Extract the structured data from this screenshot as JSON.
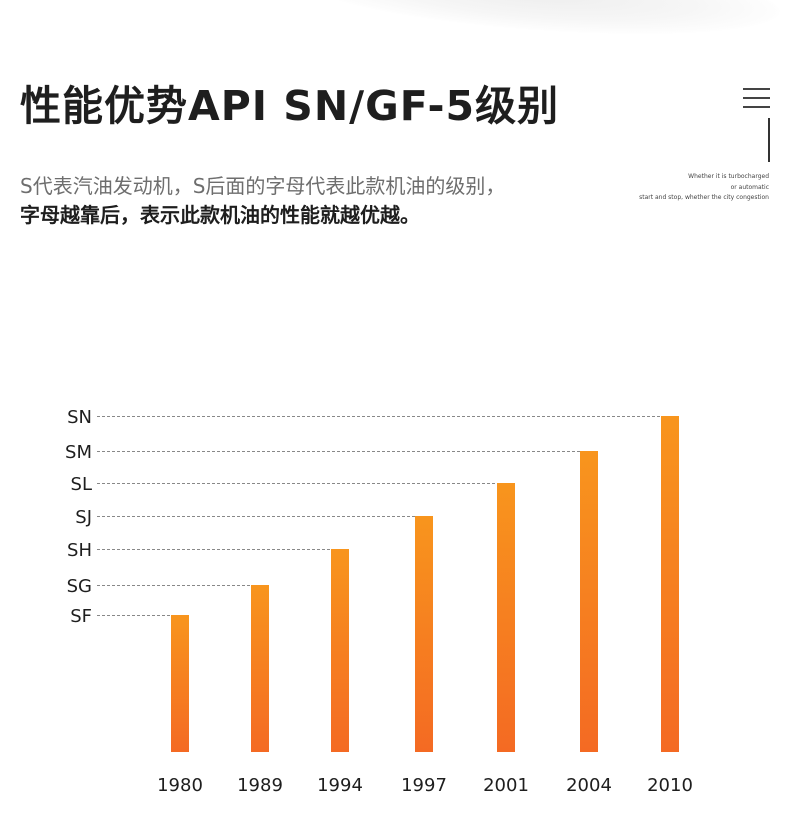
{
  "header": {
    "title": "性能优势API SN/GF-5级别"
  },
  "side_note": {
    "line1": "Whether it is turbocharged",
    "line2": "or automatic",
    "line3": "start and stop, whether the city congestion"
  },
  "subtitle": {
    "line1": "S代表汽油发动机，S后面的字母代表此款机油的级别，",
    "line2": "字母越靠后，表示此款机油的性能就越优越。"
  },
  "colors": {
    "bar_top": "#f8951d",
    "bar_bottom": "#f46a23",
    "gridline": "#888888",
    "text": "#1e1e1e"
  },
  "chart_data": {
    "type": "bar",
    "categories": [
      "1980",
      "1989",
      "1994",
      "1997",
      "2001",
      "2004",
      "2010"
    ],
    "y_levels": [
      "SF",
      "SG",
      "SH",
      "SJ",
      "SL",
      "SM",
      "SN"
    ],
    "values": [
      "SF",
      "SG",
      "SH",
      "SJ",
      "SL",
      "SM",
      "SN"
    ],
    "title": "",
    "xlabel": "",
    "ylabel": "",
    "grid": "dashed lines from each level label to its bar"
  }
}
